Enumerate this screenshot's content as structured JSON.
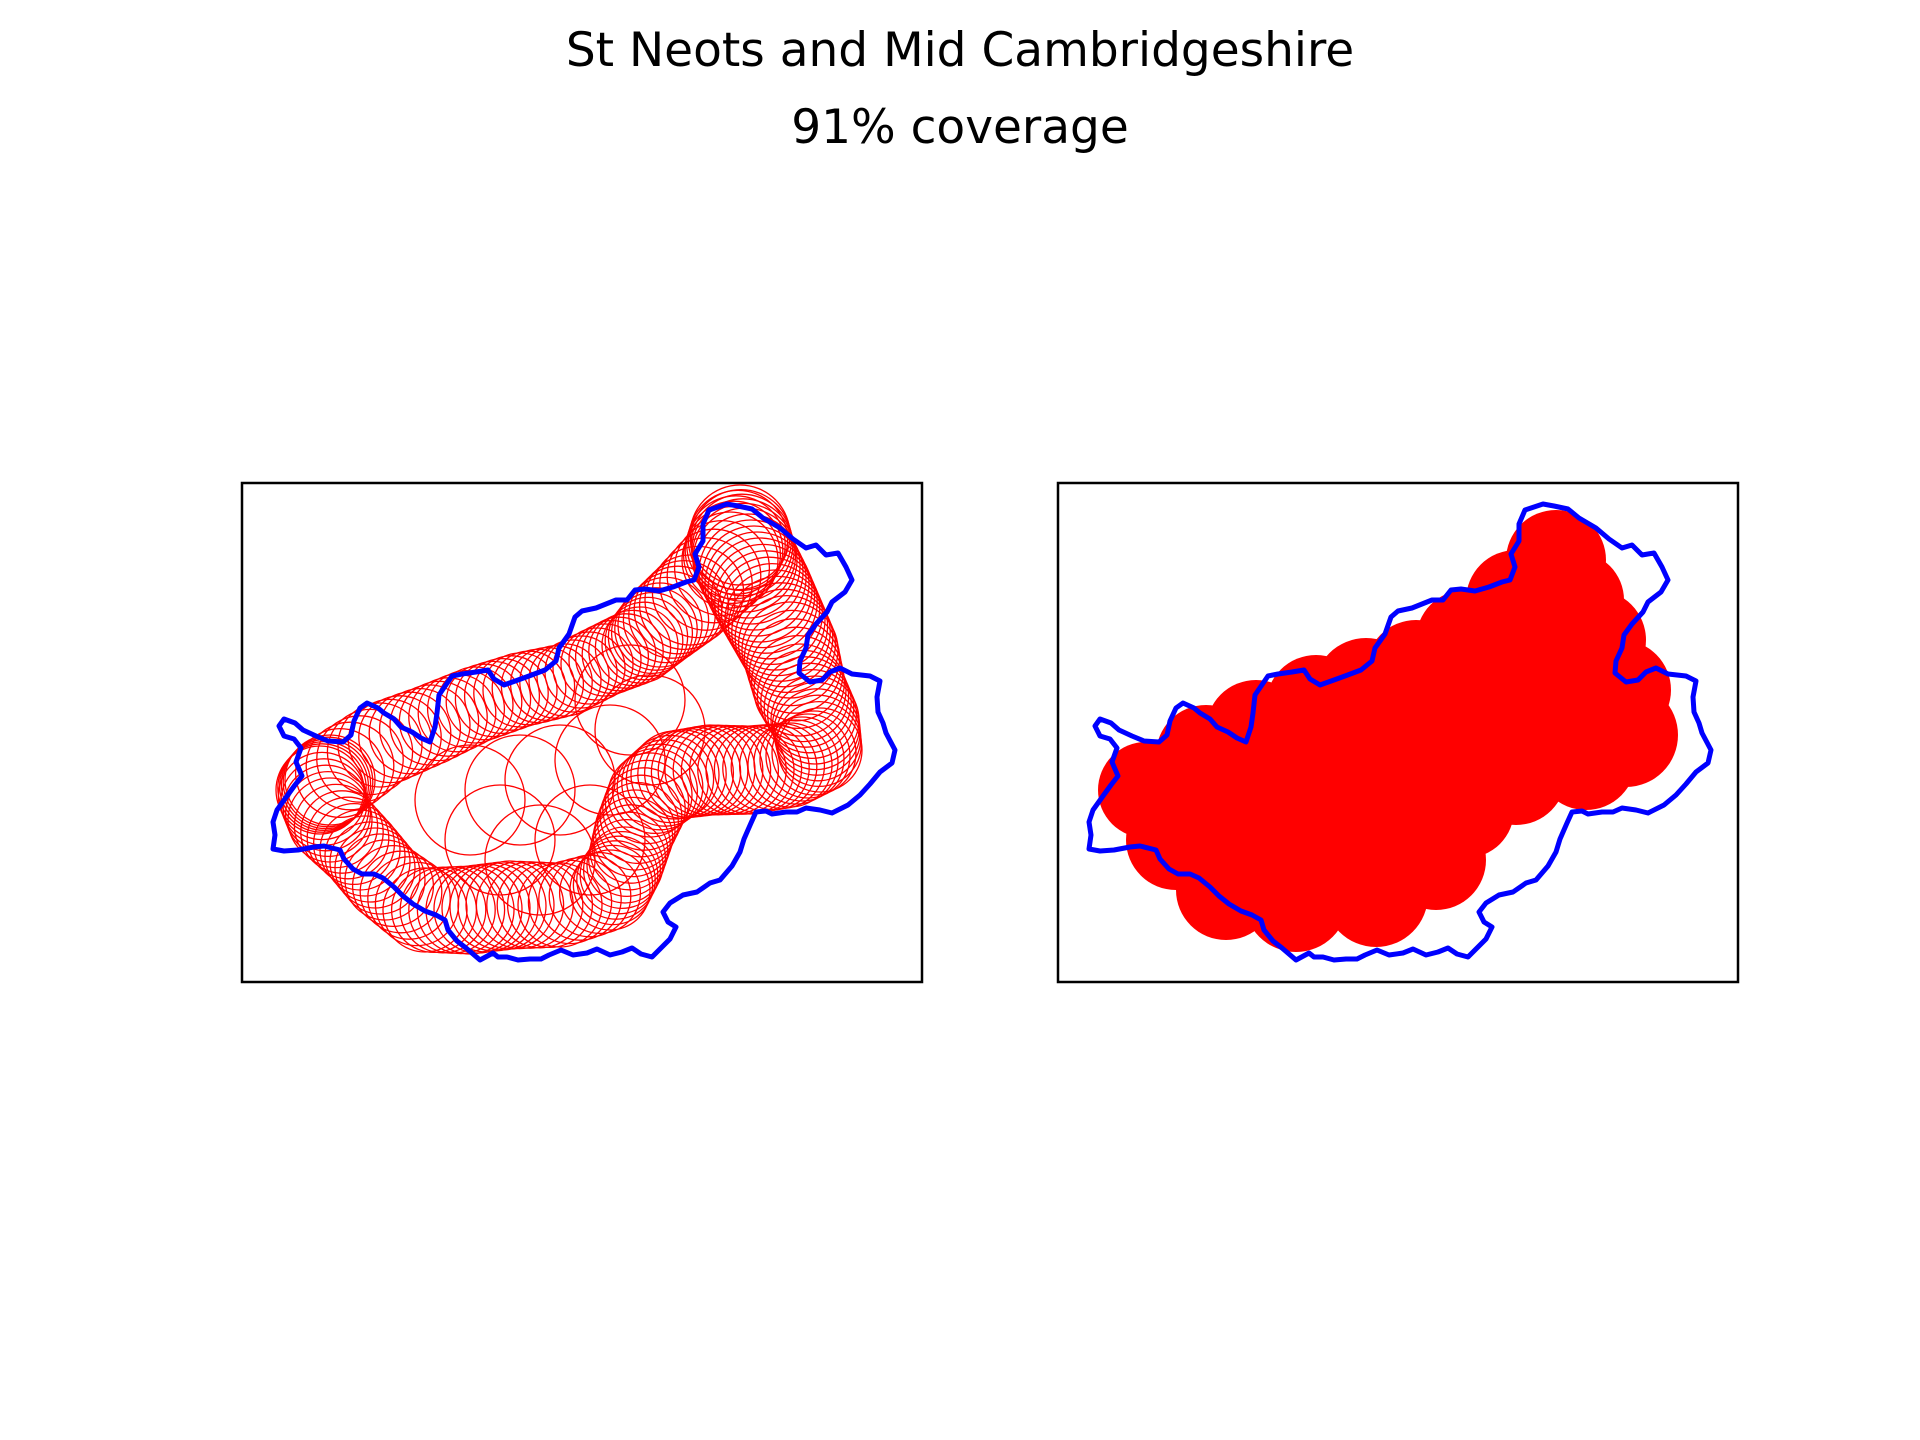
{
  "figure": {
    "title_line_1": "St Neots and Mid Cambridgeshire",
    "title_line_2": "91% coverage"
  },
  "colors": {
    "boundary": "#0000ff",
    "coverage": "#ff0000",
    "frame": "#000000",
    "background": "#ffffff"
  },
  "panels": [
    {
      "name": "outline-panel",
      "style": "circle outlines"
    },
    {
      "name": "filled-panel",
      "style": "filled circles"
    }
  ]
}
